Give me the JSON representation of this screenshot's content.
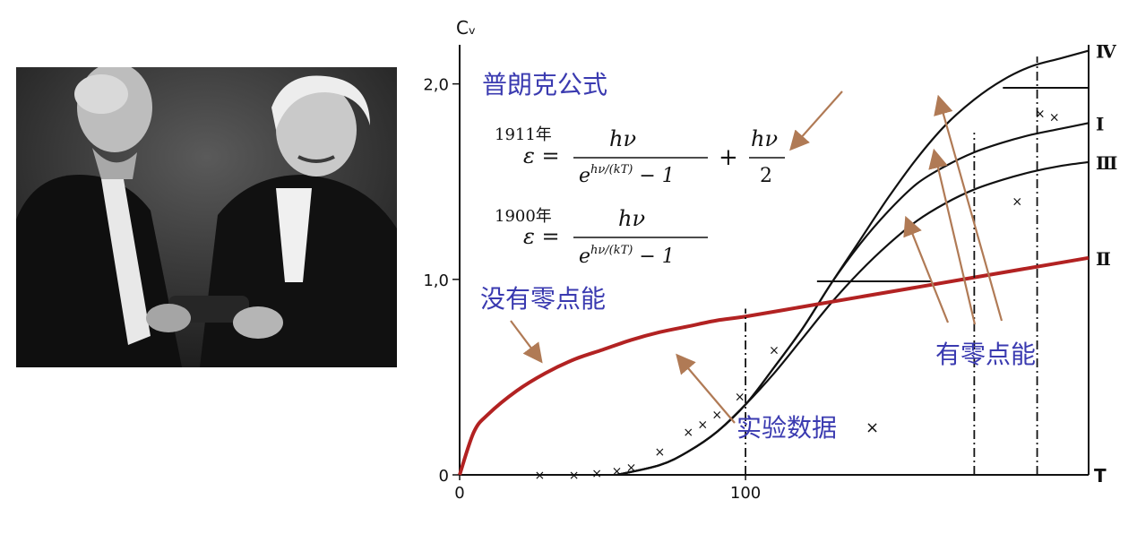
{
  "photo": {
    "description": "black-and-white photograph of two men in formal attire, one handing an award to the other"
  },
  "chart_data": {
    "type": "line",
    "xlabel": "T",
    "ylabel": "Cᵥ",
    "xlim": [
      0,
      220
    ],
    "ylim": [
      0,
      2.2
    ],
    "x_ticks": [
      {
        "value": 0,
        "label": "0"
      },
      {
        "value": 100,
        "label": "100"
      }
    ],
    "y_ticks": [
      {
        "value": 0,
        "label": "0"
      },
      {
        "value": 1.0,
        "label": "1,0"
      },
      {
        "value": 2.0,
        "label": "2,0"
      }
    ],
    "series": [
      {
        "name": "Ⅳ",
        "color": "#111111",
        "x": [
          55,
          70,
          80,
          90,
          100,
          110,
          120,
          130,
          140,
          150,
          160,
          170,
          180,
          190,
          200,
          210,
          220
        ],
        "y": [
          0.0,
          0.05,
          0.12,
          0.22,
          0.36,
          0.55,
          0.75,
          0.98,
          1.2,
          1.42,
          1.62,
          1.79,
          1.92,
          2.02,
          2.09,
          2.13,
          2.17
        ]
      },
      {
        "name": "Ⅰ",
        "color": "#111111",
        "x": [
          55,
          70,
          80,
          90,
          100,
          110,
          120,
          130,
          140,
          150,
          160,
          170,
          180,
          190,
          200,
          210,
          220
        ],
        "y": [
          0.0,
          0.05,
          0.12,
          0.22,
          0.36,
          0.55,
          0.75,
          0.98,
          1.18,
          1.35,
          1.49,
          1.58,
          1.65,
          1.7,
          1.74,
          1.77,
          1.8
        ]
      },
      {
        "name": "Ⅲ",
        "color": "#111111",
        "x": [
          55,
          70,
          80,
          90,
          100,
          110,
          120,
          130,
          140,
          150,
          160,
          170,
          180,
          190,
          200,
          210,
          220
        ],
        "y": [
          0.0,
          0.05,
          0.12,
          0.22,
          0.36,
          0.52,
          0.7,
          0.88,
          1.04,
          1.18,
          1.3,
          1.39,
          1.46,
          1.51,
          1.55,
          1.58,
          1.6
        ]
      },
      {
        "name": "Ⅱ",
        "color": "#b22222",
        "x": [
          0,
          5,
          10,
          20,
          30,
          40,
          50,
          60,
          70,
          80,
          90,
          100,
          120,
          140,
          160,
          180,
          200,
          220
        ],
        "y": [
          0.0,
          0.22,
          0.31,
          0.43,
          0.52,
          0.59,
          0.64,
          0.69,
          0.73,
          0.76,
          0.79,
          0.81,
          0.86,
          0.91,
          0.96,
          1.01,
          1.06,
          1.11
        ]
      }
    ],
    "experimental_points": {
      "x": [
        28,
        40,
        48,
        55,
        60,
        70,
        80,
        85,
        90,
        98,
        110,
        195,
        203,
        208
      ],
      "y": [
        0.0,
        0.0,
        0.01,
        0.02,
        0.04,
        0.12,
        0.22,
        0.26,
        0.31,
        0.4,
        0.64,
        1.4,
        1.85,
        1.83
      ]
    },
    "horizontal_segments": [
      {
        "x_start": 125,
        "x_end": 165,
        "y": 0.99
      },
      {
        "x_start": 190,
        "x_end": 220,
        "y": 1.98
      }
    ],
    "vertical_dashed_lines": [
      {
        "x": 100,
        "y_top": 0.85
      },
      {
        "x": 180,
        "y_top": 1.75
      },
      {
        "x": 202,
        "y_top": 2.14
      }
    ],
    "annotations": {
      "planck_title": "普朗克公式",
      "formula_1911_year": "1911年",
      "formula_1900_year": "1900年",
      "no_zero_point": "没有零点能",
      "with_zero_point": "有零点能",
      "experimental_data": "实验数据",
      "experimental_marker": "×"
    },
    "colors": {
      "annotation_text": "#3a3ab0",
      "arrow": "#b07a55",
      "red_curve": "#b22222",
      "axis": "#111111"
    }
  }
}
